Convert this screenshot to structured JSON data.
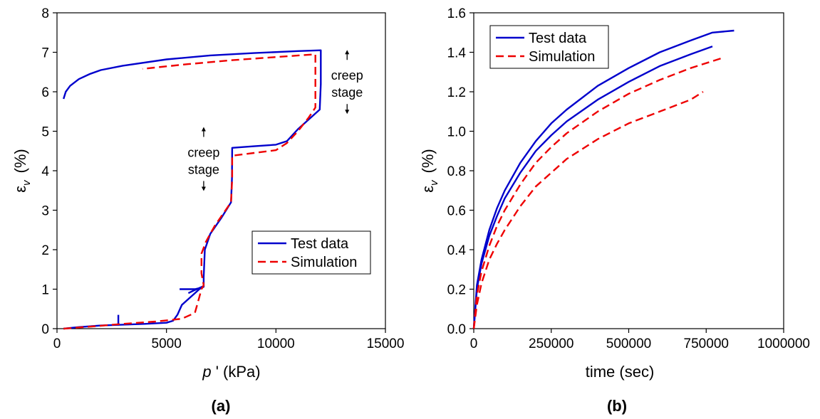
{
  "chart_data": [
    {
      "type": "line",
      "panel_label": "(a)",
      "xlabel": "p ' (kPa)",
      "xlabel_parts": {
        "symbol": "p",
        "suffix": " ' (kPa)"
      },
      "ylabel": "εv  (%)",
      "ylabel_parts": {
        "symbol": "ε",
        "sub": "v",
        "suffix": "(%)"
      },
      "xlim": [
        0,
        15000
      ],
      "ylim": [
        0,
        8
      ],
      "xticks": [
        0,
        5000,
        10000,
        15000
      ],
      "yticks": [
        0,
        1,
        2,
        3,
        4,
        5,
        6,
        7,
        8
      ],
      "xtick_labels": [
        "0",
        "5000",
        "10000",
        "15000"
      ],
      "ytick_labels": [
        "0",
        "1",
        "2",
        "3",
        "4",
        "5",
        "6",
        "7",
        "8"
      ],
      "grid": false,
      "legend": {
        "position": "lower-right",
        "entries": [
          "Test data",
          "Simulation"
        ]
      },
      "annotations": [
        {
          "id": "creep1",
          "lines": [
            "creep",
            "stage"
          ],
          "at": [
            13250,
            6.05
          ]
        },
        {
          "id": "creep2",
          "lines": [
            "creep",
            "stage"
          ],
          "at": [
            6700,
            4.1
          ]
        }
      ],
      "series": [
        {
          "name": "Test data",
          "color": "#0000cc",
          "dash": "solid",
          "segments": [
            [
              [
                300,
                0.0
              ],
              [
                1000,
                0.04
              ],
              [
                2000,
                0.08
              ],
              [
                3000,
                0.1
              ],
              [
                4000,
                0.12
              ],
              [
                5000,
                0.15
              ],
              [
                5300,
                0.2
              ],
              [
                5500,
                0.35
              ],
              [
                5700,
                0.6
              ],
              [
                6000,
                0.75
              ],
              [
                6300,
                0.9
              ],
              [
                6500,
                1.0
              ],
              [
                6700,
                1.06
              ],
              [
                6700,
                1.3
              ],
              [
                6750,
                2.0
              ],
              [
                7000,
                2.4
              ],
              [
                7500,
                2.8
              ],
              [
                7950,
                3.2
              ],
              [
                7990,
                3.8
              ],
              [
                8000,
                4.58
              ],
              [
                9000,
                4.62
              ],
              [
                10000,
                4.66
              ],
              [
                10500,
                4.75
              ],
              [
                11000,
                5.05
              ],
              [
                11500,
                5.3
              ],
              [
                12000,
                5.55
              ],
              [
                12050,
                6.2
              ],
              [
                12050,
                7.05
              ],
              [
                11000,
                7.03
              ],
              [
                9000,
                6.98
              ],
              [
                7000,
                6.92
              ],
              [
                5000,
                6.82
              ],
              [
                3000,
                6.66
              ],
              [
                2000,
                6.55
              ],
              [
                1500,
                6.45
              ],
              [
                1000,
                6.32
              ],
              [
                600,
                6.15
              ],
              [
                400,
                6.0
              ],
              [
                300,
                5.82
              ]
            ],
            [
              [
                2800,
                0.08
              ],
              [
                2800,
                0.35
              ]
            ],
            [
              [
                5600,
                1.0
              ],
              [
                6300,
                1.0
              ],
              [
                6600,
                1.04
              ],
              [
                6700,
                1.08
              ],
              [
                6300,
                0.98
              ],
              [
                6000,
                0.9
              ]
            ]
          ]
        },
        {
          "name": "Simulation",
          "color": "#ee0000",
          "dash": "dashed",
          "segments": [
            [
              [
                300,
                0.0
              ],
              [
                1500,
                0.05
              ],
              [
                3000,
                0.12
              ],
              [
                4500,
                0.18
              ],
              [
                5700,
                0.25
              ],
              [
                6300,
                0.4
              ],
              [
                6500,
                0.8
              ],
              [
                6600,
                1.0
              ],
              [
                6700,
                1.1
              ],
              [
                6600,
                1.4
              ],
              [
                6600,
                1.9
              ],
              [
                6800,
                2.2
              ],
              [
                7200,
                2.6
              ],
              [
                7700,
                3.0
              ],
              [
                7950,
                3.2
              ],
              [
                8000,
                3.8
              ],
              [
                8000,
                4.38
              ],
              [
                9000,
                4.45
              ],
              [
                10000,
                4.52
              ],
              [
                10500,
                4.7
              ],
              [
                11000,
                5.0
              ],
              [
                11500,
                5.35
              ],
              [
                11800,
                5.6
              ],
              [
                11800,
                6.3
              ],
              [
                11800,
                6.95
              ],
              [
                10000,
                6.88
              ],
              [
                8000,
                6.8
              ],
              [
                6000,
                6.7
              ],
              [
                3900,
                6.58
              ]
            ]
          ]
        }
      ]
    },
    {
      "type": "line",
      "panel_label": "(b)",
      "xlabel": "time (sec)",
      "ylabel": "εv (%)",
      "ylabel_parts": {
        "symbol": "ε",
        "sub": "v",
        "suffix": "(%)"
      },
      "xlim": [
        0,
        1000000
      ],
      "ylim": [
        0,
        1.6
      ],
      "xticks": [
        0,
        250000,
        500000,
        750000,
        1000000
      ],
      "yticks": [
        0,
        0.2,
        0.4,
        0.6,
        0.8,
        1.0,
        1.2,
        1.4,
        1.6
      ],
      "xtick_labels": [
        "0",
        "250000",
        "500000",
        "750000",
        "1000000"
      ],
      "ytick_labels": [
        "0.0",
        "0.2",
        "0.4",
        "0.6",
        "0.8",
        "1.0",
        "1.2",
        "1.4",
        "1.6"
      ],
      "grid": false,
      "legend": {
        "position": "top-left",
        "entries": [
          "Test data",
          "Simulation"
        ]
      },
      "series": [
        {
          "name": "Test data",
          "color": "#0000cc",
          "dash": "solid",
          "segments": [
            [
              [
                0,
                0
              ],
              [
                10000,
                0.22
              ],
              [
                25000,
                0.35
              ],
              [
                50000,
                0.5
              ],
              [
                75000,
                0.61
              ],
              [
                100000,
                0.7
              ],
              [
                150000,
                0.84
              ],
              [
                200000,
                0.95
              ],
              [
                250000,
                1.04
              ],
              [
                300000,
                1.11
              ],
              [
                400000,
                1.23
              ],
              [
                500000,
                1.32
              ],
              [
                600000,
                1.4
              ],
              [
                700000,
                1.46
              ],
              [
                770000,
                1.5
              ],
              [
                840000,
                1.51
              ]
            ],
            [
              [
                0,
                0
              ],
              [
                10000,
                0.2
              ],
              [
                25000,
                0.33
              ],
              [
                50000,
                0.47
              ],
              [
                75000,
                0.57
              ],
              [
                100000,
                0.66
              ],
              [
                150000,
                0.79
              ],
              [
                200000,
                0.9
              ],
              [
                250000,
                0.98
              ],
              [
                300000,
                1.05
              ],
              [
                400000,
                1.16
              ],
              [
                500000,
                1.25
              ],
              [
                600000,
                1.33
              ],
              [
                700000,
                1.39
              ],
              [
                770000,
                1.43
              ]
            ]
          ]
        },
        {
          "name": "Simulation",
          "color": "#ee0000",
          "dash": "dashed",
          "segments": [
            [
              [
                0,
                0
              ],
              [
                10000,
                0.17
              ],
              [
                25000,
                0.29
              ],
              [
                50000,
                0.42
              ],
              [
                75000,
                0.52
              ],
              [
                100000,
                0.6
              ],
              [
                150000,
                0.73
              ],
              [
                200000,
                0.84
              ],
              [
                250000,
                0.92
              ],
              [
                300000,
                0.99
              ],
              [
                400000,
                1.1
              ],
              [
                500000,
                1.19
              ],
              [
                600000,
                1.26
              ],
              [
                700000,
                1.32
              ],
              [
                800000,
                1.37
              ]
            ],
            [
              [
                0,
                0
              ],
              [
                10000,
                0.12
              ],
              [
                25000,
                0.23
              ],
              [
                50000,
                0.35
              ],
              [
                75000,
                0.43
              ],
              [
                100000,
                0.5
              ],
              [
                150000,
                0.62
              ],
              [
                200000,
                0.72
              ],
              [
                250000,
                0.79
              ],
              [
                300000,
                0.86
              ],
              [
                400000,
                0.96
              ],
              [
                500000,
                1.04
              ],
              [
                600000,
                1.1
              ],
              [
                700000,
                1.16
              ],
              [
                740000,
                1.2
              ]
            ]
          ]
        }
      ]
    }
  ]
}
